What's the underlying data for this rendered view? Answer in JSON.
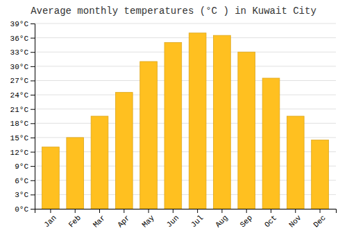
{
  "chart_data": {
    "type": "bar",
    "title": "Average monthly temperatures (°C ) in Kuwait City",
    "categories": [
      "Jan",
      "Feb",
      "Mar",
      "Apr",
      "May",
      "Jun",
      "Jul",
      "Aug",
      "Sep",
      "Oct",
      "Nov",
      "Dec"
    ],
    "values": [
      13,
      15,
      19.5,
      24.5,
      31,
      35,
      37,
      36.5,
      33,
      27.5,
      19.5,
      14.5
    ],
    "color": "#FFC020",
    "ylim": [
      0,
      39
    ],
    "yticks": [
      {
        "value": 0,
        "label": "0°C"
      },
      {
        "value": 3,
        "label": "3°C"
      },
      {
        "value": 6,
        "label": "6°C"
      },
      {
        "value": 9,
        "label": "9°C"
      },
      {
        "value": 12,
        "label": "12°C"
      },
      {
        "value": 15,
        "label": "15°C"
      },
      {
        "value": 18,
        "label": "18°C"
      },
      {
        "value": 21,
        "label": "21°C"
      },
      {
        "value": 24,
        "label": "24°C"
      },
      {
        "value": 27,
        "label": "27°C"
      },
      {
        "value": 30,
        "label": "30°C"
      },
      {
        "value": 33,
        "label": "33°C"
      },
      {
        "value": 36,
        "label": "36°C"
      },
      {
        "value": 39,
        "label": "39°C"
      }
    ],
    "grid": true
  }
}
